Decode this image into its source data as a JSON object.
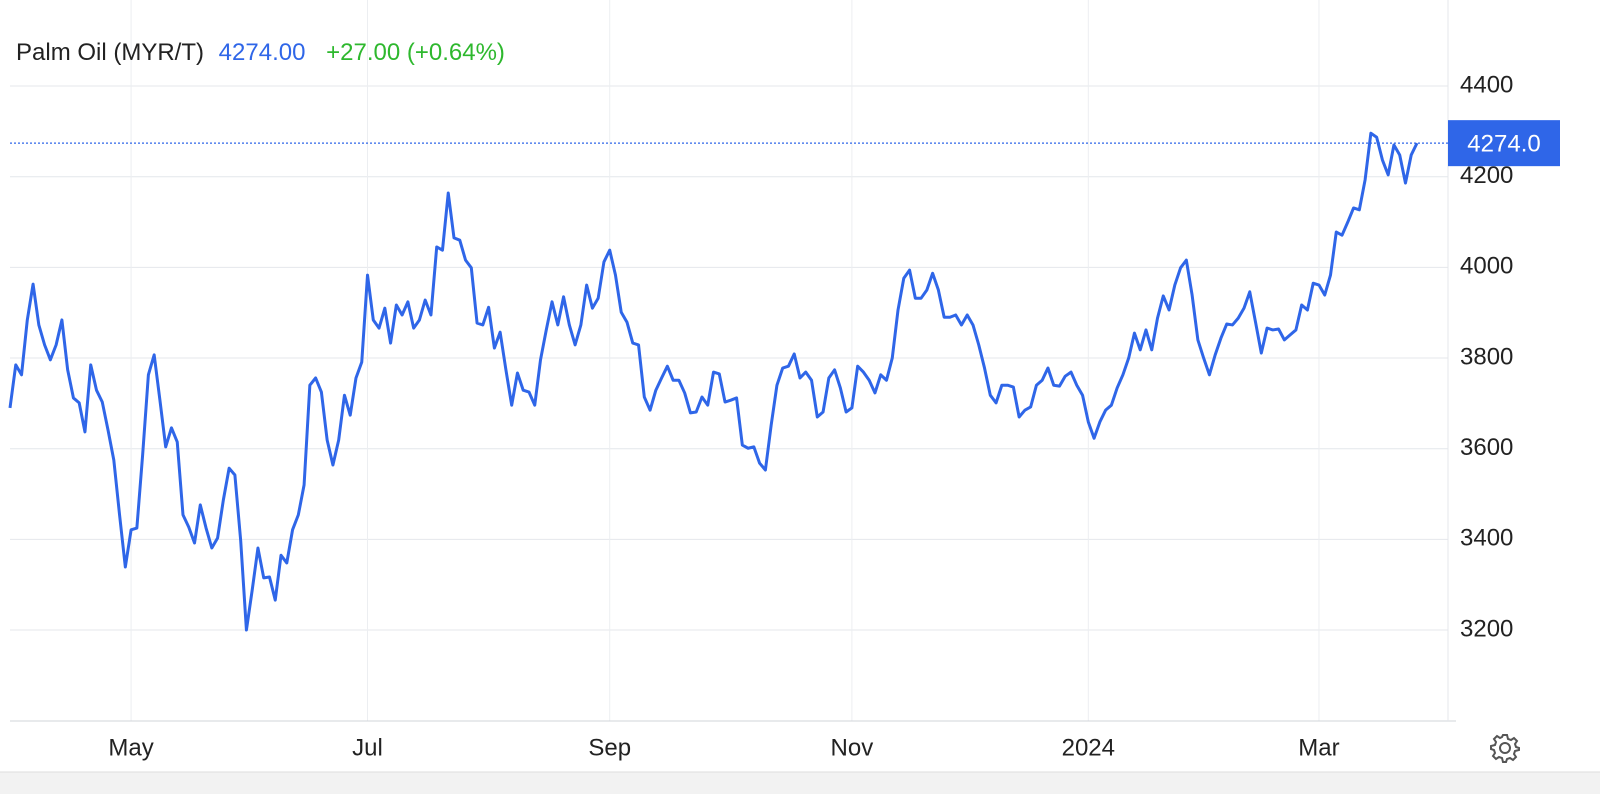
{
  "chart_data": {
    "type": "line",
    "title": "Palm Oil (MYR/T)",
    "price": "4274.00",
    "change": "+27.00 (+0.64%)",
    "last_label": "4274.0",
    "categories": [
      null,
      null,
      null,
      null,
      null,
      null,
      null,
      null,
      null,
      null,
      null,
      null,
      null,
      null,
      null,
      null,
      null,
      null,
      null,
      null,
      null,
      "May",
      null,
      null,
      null,
      null,
      null,
      null,
      null,
      null,
      null,
      null,
      null,
      null,
      null,
      null,
      null,
      null,
      null,
      null,
      null,
      null,
      null,
      null,
      null,
      null,
      null,
      null,
      null,
      null,
      null,
      null,
      null,
      null,
      null,
      null,
      null,
      null,
      null,
      null,
      null,
      null,
      "Jul",
      null,
      null,
      null,
      null,
      null,
      null,
      null,
      null,
      null,
      null,
      null,
      null,
      null,
      null,
      null,
      null,
      null,
      null,
      null,
      null,
      null,
      null,
      null,
      null,
      null,
      null,
      null,
      null,
      null,
      null,
      null,
      null,
      null,
      null,
      null,
      null,
      null,
      null,
      null,
      null,
      null,
      "Sep",
      null,
      null,
      null,
      null,
      null,
      null,
      null,
      null,
      null,
      null,
      null,
      null,
      null,
      null,
      null,
      null,
      null,
      null,
      null,
      null,
      null,
      null,
      null,
      null,
      null,
      null,
      null,
      null,
      null,
      null,
      null,
      null,
      null,
      null,
      null,
      null,
      null,
      null,
      null,
      null,
      null,
      "Nov",
      null,
      null,
      null,
      null,
      null,
      null,
      null,
      null,
      null,
      null,
      null,
      null,
      null,
      null,
      null,
      null,
      null,
      null,
      null,
      null,
      null,
      null,
      null,
      null,
      null,
      null,
      null,
      null,
      null,
      null,
      null,
      null,
      null,
      null,
      null,
      null,
      null,
      null,
      null,
      null,
      "2024",
      null,
      null,
      null,
      null,
      null,
      null,
      null,
      null,
      null,
      null,
      null,
      null,
      null,
      null,
      null,
      null,
      null,
      null,
      null,
      null,
      null,
      null,
      null,
      null,
      null,
      null,
      null,
      null,
      null,
      null,
      null,
      null,
      null,
      null,
      null,
      null,
      null,
      null,
      null,
      "Mar",
      null,
      null,
      null,
      null,
      null,
      null,
      null,
      null,
      null,
      null,
      null,
      null,
      null,
      null,
      null,
      null,
      null
    ],
    "series": [
      {
        "name": "Palm Oil",
        "color": "#2f66e8",
        "values": [
          3690,
          3785,
          3763,
          3884,
          3963,
          3873,
          3829,
          3796,
          3829,
          3884,
          3774,
          3712,
          3701,
          3637,
          3785,
          3729,
          3703,
          3641,
          3575,
          3454,
          3339,
          3421,
          3425,
          3586,
          3763,
          3807,
          3707,
          3604,
          3646,
          3615,
          3454,
          3427,
          3392,
          3476,
          3425,
          3381,
          3403,
          3487,
          3557,
          3542,
          3398,
          3200,
          3288,
          3381,
          3315,
          3317,
          3266,
          3365,
          3348,
          3421,
          3454,
          3520,
          3740,
          3756,
          3725,
          3619,
          3564,
          3619,
          3718,
          3674,
          3756,
          3791,
          3983,
          3884,
          3866,
          3910,
          3833,
          3917,
          3895,
          3924,
          3866,
          3884,
          3928,
          3895,
          4045,
          4038,
          4164,
          4065,
          4060,
          4016,
          3999,
          3877,
          3873,
          3912,
          3822,
          3857,
          3774,
          3696,
          3767,
          3729,
          3725,
          3696,
          3796,
          3862,
          3924,
          3873,
          3935,
          3873,
          3829,
          3873,
          3961,
          3910,
          3932,
          4012,
          4038,
          3983,
          3901,
          3879,
          3833,
          3829,
          3714,
          3685,
          3729,
          3756,
          3782,
          3751,
          3751,
          3723,
          3679,
          3681,
          3714,
          3696,
          3769,
          3765,
          3703,
          3707,
          3712,
          3608,
          3601,
          3604,
          3568,
          3553,
          3652,
          3740,
          3778,
          3782,
          3809,
          3756,
          3769,
          3751,
          3670,
          3681,
          3756,
          3774,
          3734,
          3681,
          3690,
          3782,
          3769,
          3751,
          3723,
          3763,
          3751,
          3800,
          3906,
          3976,
          3994,
          3932,
          3932,
          3950,
          3987,
          3950,
          3890,
          3890,
          3895,
          3873,
          3895,
          3873,
          3829,
          3778,
          3718,
          3701,
          3740,
          3740,
          3736,
          3670,
          3685,
          3692,
          3740,
          3751,
          3778,
          3740,
          3738,
          3760,
          3769,
          3740,
          3718,
          3659,
          3623,
          3659,
          3685,
          3696,
          3734,
          3763,
          3800,
          3855,
          3818,
          3862,
          3818,
          3888,
          3937,
          3906,
          3961,
          3999,
          4016,
          3939,
          3840,
          3800,
          3763,
          3807,
          3844,
          3875,
          3873,
          3888,
          3910,
          3946,
          3879,
          3811,
          3866,
          3862,
          3864,
          3840,
          3851,
          3862,
          3917,
          3906,
          3965,
          3961,
          3939,
          3983,
          4078,
          4071,
          4100,
          4131,
          4127,
          4193,
          4296,
          4287,
          4237,
          4204,
          4270,
          4248,
          4186,
          4248,
          4274
        ]
      }
    ],
    "ylim": [
      3000,
      4500
    ],
    "yticks": [
      3200,
      3400,
      3600,
      3800,
      4000,
      4200,
      4400
    ],
    "grid": true,
    "price_color": "#2f66e8",
    "change_color": "#2eb82e"
  }
}
